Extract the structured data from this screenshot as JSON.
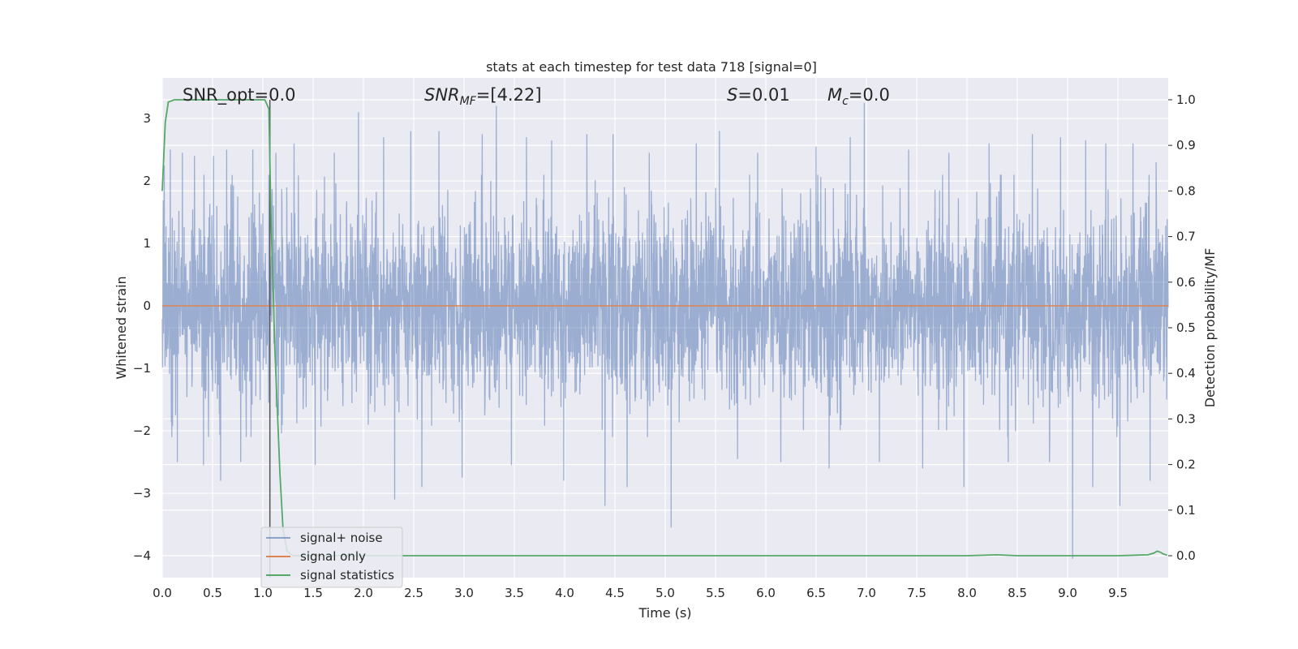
{
  "chart_data": {
    "type": "line",
    "title": "stats at each timestep for test data 718 [signal=0]",
    "xlabel": "Time (s)",
    "ylabel": "Whitened strain",
    "y2label": "Detection probability/MF",
    "xlim": [
      0.0,
      10.0
    ],
    "ylim": [
      -4.35,
      3.65
    ],
    "y2lim": [
      -0.048,
      1.048
    ],
    "x_ticks": [
      "0.0",
      "0.5",
      "1.0",
      "1.5",
      "2.0",
      "2.5",
      "3.0",
      "3.5",
      "4.0",
      "4.5",
      "5.0",
      "5.5",
      "6.0",
      "6.5",
      "7.0",
      "7.5",
      "8.0",
      "8.5",
      "9.0",
      "9.5"
    ],
    "x_tick_values": [
      0.0,
      0.5,
      1.0,
      1.5,
      2.0,
      2.5,
      3.0,
      3.5,
      4.0,
      4.5,
      5.0,
      5.5,
      6.0,
      6.5,
      7.0,
      7.5,
      8.0,
      8.5,
      9.0,
      9.5
    ],
    "y_ticks": [
      "3",
      "2",
      "1",
      "0",
      "−1",
      "−2",
      "−3",
      "−4"
    ],
    "y_tick_values": [
      3,
      2,
      1,
      0,
      -1,
      -2,
      -3,
      -4
    ],
    "y2_ticks": [
      "1.0",
      "0.9",
      "0.8",
      "0.7",
      "0.6",
      "0.5",
      "0.4",
      "0.3",
      "0.2",
      "0.1",
      "0.0"
    ],
    "y2_tick_values": [
      1.0,
      0.9,
      0.8,
      0.7,
      0.6,
      0.5,
      0.4,
      0.3,
      0.2,
      0.1,
      0.0
    ],
    "grid": true,
    "legend_position": "lower-left",
    "annotations": {
      "snr_opt": "SNR_opt=0.0",
      "snr_mf_main": "SNR",
      "snr_mf_sub": "MF",
      "snr_mf_value": "=[4.22]",
      "s_main": "S",
      "s_value": "=0.01",
      "mc_main": "M",
      "mc_sub": "c",
      "mc_value": "=0.0"
    },
    "series": [
      {
        "name": "signal+ noise",
        "color": "#4c72b0",
        "axis": "left",
        "kind": "noise",
        "envelope_sigma": 0.75,
        "spikes": [
          {
            "x": 0.02,
            "y": 2.25
          },
          {
            "x": 0.08,
            "y": 2.5
          },
          {
            "x": 0.15,
            "y": -2.5
          },
          {
            "x": 0.2,
            "y": 2.45
          },
          {
            "x": 0.32,
            "y": 2.4
          },
          {
            "x": 0.41,
            "y": -2.55
          },
          {
            "x": 0.51,
            "y": 2.4
          },
          {
            "x": 0.58,
            "y": -2.8
          },
          {
            "x": 0.64,
            "y": 2.5
          },
          {
            "x": 0.78,
            "y": -2.5
          },
          {
            "x": 0.9,
            "y": 2.5
          },
          {
            "x": 1.13,
            "y": 2.45
          },
          {
            "x": 1.31,
            "y": 2.6
          },
          {
            "x": 1.52,
            "y": -2.55
          },
          {
            "x": 1.71,
            "y": 2.45
          },
          {
            "x": 1.95,
            "y": 3.1
          },
          {
            "x": 2.2,
            "y": 2.7
          },
          {
            "x": 2.31,
            "y": -3.1
          },
          {
            "x": 2.47,
            "y": 2.8
          },
          {
            "x": 2.58,
            "y": -2.9
          },
          {
            "x": 2.75,
            "y": 2.8
          },
          {
            "x": 2.98,
            "y": -2.75
          },
          {
            "x": 3.18,
            "y": 2.75
          },
          {
            "x": 3.32,
            "y": 3.2
          },
          {
            "x": 3.47,
            "y": -2.55
          },
          {
            "x": 3.62,
            "y": 2.7
          },
          {
            "x": 3.87,
            "y": 2.65
          },
          {
            "x": 3.99,
            "y": -2.8
          },
          {
            "x": 4.22,
            "y": 2.75
          },
          {
            "x": 4.4,
            "y": -3.2
          },
          {
            "x": 4.48,
            "y": 2.75
          },
          {
            "x": 4.62,
            "y": -2.9
          },
          {
            "x": 4.84,
            "y": 2.45
          },
          {
            "x": 5.06,
            "y": -3.55
          },
          {
            "x": 5.31,
            "y": 2.6
          },
          {
            "x": 5.54,
            "y": 2.8
          },
          {
            "x": 5.72,
            "y": -2.45
          },
          {
            "x": 5.92,
            "y": 2.45
          },
          {
            "x": 6.15,
            "y": -2.5
          },
          {
            "x": 6.5,
            "y": 2.55
          },
          {
            "x": 6.63,
            "y": -2.6
          },
          {
            "x": 6.84,
            "y": 2.7
          },
          {
            "x": 6.98,
            "y": 3.25
          },
          {
            "x": 7.13,
            "y": -2.5
          },
          {
            "x": 7.42,
            "y": 2.5
          },
          {
            "x": 7.56,
            "y": -2.6
          },
          {
            "x": 7.82,
            "y": 2.45
          },
          {
            "x": 7.97,
            "y": -2.9
          },
          {
            "x": 8.22,
            "y": 2.6
          },
          {
            "x": 8.41,
            "y": -2.5
          },
          {
            "x": 8.65,
            "y": 2.75
          },
          {
            "x": 8.82,
            "y": -2.5
          },
          {
            "x": 8.93,
            "y": 2.7
          },
          {
            "x": 9.05,
            "y": -4.05
          },
          {
            "x": 9.18,
            "y": 2.65
          },
          {
            "x": 9.25,
            "y": -2.9
          },
          {
            "x": 9.38,
            "y": 2.6
          },
          {
            "x": 9.52,
            "y": -3.2
          },
          {
            "x": 9.65,
            "y": 2.6
          },
          {
            "x": 9.82,
            "y": -2.8
          },
          {
            "x": 9.88,
            "y": 2.3
          }
        ]
      },
      {
        "name": "signal only",
        "color": "#dd8452",
        "axis": "left",
        "x": [
          0.0,
          10.0
        ],
        "y": [
          0.0,
          0.0
        ]
      },
      {
        "name": "signal statistics",
        "color": "#55a868",
        "axis": "right",
        "x": [
          0.0,
          0.03,
          0.06,
          0.12,
          0.3,
          0.6,
          0.9,
          1.02,
          1.06,
          1.08,
          1.12,
          1.17,
          1.2,
          1.24,
          1.3,
          2.0,
          3.0,
          4.0,
          5.0,
          6.0,
          7.0,
          8.0,
          8.3,
          8.5,
          9.0,
          9.5,
          9.8,
          9.86,
          9.89,
          9.92,
          9.95,
          9.99
        ],
        "y": [
          0.8,
          0.95,
          0.995,
          1.0,
          1.0,
          1.0,
          1.0,
          1.0,
          0.98,
          0.75,
          0.45,
          0.18,
          0.06,
          0.01,
          0.0,
          0.0,
          0.0,
          0.0,
          0.0,
          0.0,
          0.0,
          0.0,
          0.002,
          0.0,
          0.0,
          0.0,
          0.002,
          0.006,
          0.01,
          0.008,
          0.004,
          0.001
        ]
      }
    ],
    "vline": {
      "x": 1.07,
      "color": "#555555"
    }
  }
}
